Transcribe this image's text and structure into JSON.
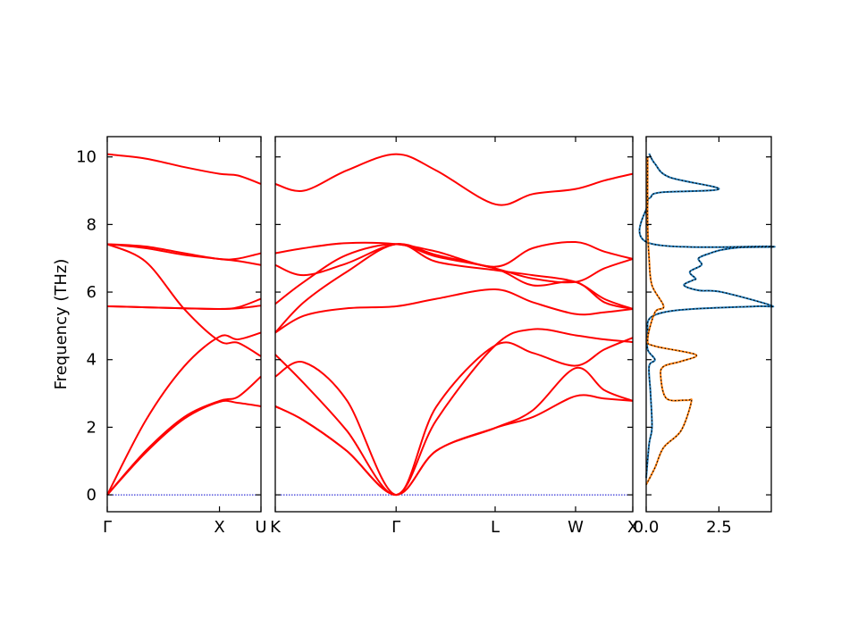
{
  "chart_data": [
    {
      "type": "line",
      "panel": "band-structure-gamma-x-u",
      "ylabel": "Frequency (THz)",
      "ylim": [
        -0.5,
        10.6
      ],
      "yticks": [
        0,
        2,
        4,
        6,
        8,
        10
      ],
      "xlim": [
        0,
        1
      ],
      "xticks": [
        {
          "x": 0,
          "label": "Γ"
        },
        {
          "x": 0.73,
          "label": "X"
        },
        {
          "x": 1,
          "label": "U"
        }
      ],
      "color": "#ff0000",
      "zero_line_color": "#0000cc",
      "series": [
        {
          "x": [
            0,
            0.25,
            0.5,
            0.73,
            0.85,
            1
          ],
          "y": [
            10.08,
            9.95,
            9.7,
            9.5,
            9.45,
            9.2
          ]
        },
        {
          "x": [
            0,
            0.25,
            0.5,
            0.73,
            0.85,
            1
          ],
          "y": [
            7.42,
            7.35,
            7.15,
            6.98,
            6.99,
            7.15
          ]
        },
        {
          "x": [
            0,
            0.25,
            0.5,
            0.73,
            0.85,
            1
          ],
          "y": [
            7.42,
            7.3,
            7.1,
            6.98,
            6.92,
            6.8
          ]
        },
        {
          "x": [
            0,
            0.25,
            0.5,
            0.73,
            0.85,
            1
          ],
          "y": [
            7.42,
            6.9,
            5.5,
            4.55,
            4.5,
            4.1
          ]
        },
        {
          "x": [
            0,
            0.25,
            0.5,
            0.73,
            0.85,
            1
          ],
          "y": [
            5.58,
            5.55,
            5.52,
            5.5,
            5.55,
            5.8
          ]
        },
        {
          "x": [
            0,
            0.25,
            0.5,
            0.73,
            0.85,
            1
          ],
          "y": [
            5.58,
            5.55,
            5.52,
            5.5,
            5.52,
            5.6
          ]
        },
        {
          "x": [
            0,
            0.25,
            0.5,
            0.73,
            0.85,
            1
          ],
          "y": [
            0,
            2.2,
            3.8,
            4.68,
            4.6,
            4.8
          ]
        },
        {
          "x": [
            0,
            0.25,
            0.5,
            0.73,
            0.85,
            1
          ],
          "y": [
            0,
            1.3,
            2.3,
            2.78,
            2.9,
            3.5
          ]
        },
        {
          "x": [
            0,
            0.25,
            0.5,
            0.73,
            0.85,
            1
          ],
          "y": [
            0,
            1.25,
            2.25,
            2.75,
            2.72,
            2.62
          ]
        }
      ]
    },
    {
      "type": "line",
      "panel": "band-structure-k-gamma-l-w-x",
      "ylim": [
        -0.5,
        10.6
      ],
      "xlim": [
        0,
        1
      ],
      "xticks": [
        {
          "x": 0,
          "label": "K"
        },
        {
          "x": 0.338,
          "label": "Γ"
        },
        {
          "x": 0.615,
          "label": "L"
        },
        {
          "x": 0.84,
          "label": "W"
        },
        {
          "x": 1,
          "label": "X"
        }
      ],
      "color": "#ff0000",
      "zero_line_color": "#0000cc",
      "series": [
        {
          "x": [
            0,
            0.08,
            0.2,
            0.338,
            0.45,
            0.615,
            0.72,
            0.84,
            0.92,
            1
          ],
          "y": [
            9.2,
            9.0,
            9.6,
            10.08,
            9.6,
            8.6,
            8.9,
            9.05,
            9.3,
            9.5
          ]
        },
        {
          "x": [
            0,
            0.08,
            0.2,
            0.338,
            0.45,
            0.615,
            0.72,
            0.84,
            0.92,
            1
          ],
          "y": [
            7.15,
            7.3,
            7.45,
            7.42,
            7.2,
            6.75,
            7.3,
            7.48,
            7.2,
            6.98
          ]
        },
        {
          "x": [
            0,
            0.08,
            0.2,
            0.338,
            0.45,
            0.615,
            0.72,
            0.84,
            0.92,
            1
          ],
          "y": [
            6.8,
            6.5,
            6.85,
            7.42,
            7.1,
            6.7,
            6.4,
            6.3,
            6.7,
            6.98
          ]
        },
        {
          "x": [
            0,
            0.08,
            0.2,
            0.338,
            0.45,
            0.615,
            0.72,
            0.84,
            0.92,
            1
          ],
          "y": [
            5.65,
            6.3,
            7.1,
            7.42,
            7.05,
            6.7,
            6.2,
            6.3,
            5.7,
            5.5
          ]
        },
        {
          "x": [
            0,
            0.08,
            0.2,
            0.338,
            0.45,
            0.615,
            0.72,
            0.84,
            0.92,
            1
          ],
          "y": [
            4.8,
            5.7,
            6.6,
            7.42,
            6.9,
            6.65,
            6.5,
            6.3,
            5.8,
            5.5
          ]
        },
        {
          "x": [
            0,
            0.08,
            0.2,
            0.338,
            0.45,
            0.615,
            0.72,
            0.84,
            0.92,
            1
          ],
          "y": [
            4.8,
            5.3,
            5.52,
            5.58,
            5.8,
            6.08,
            5.7,
            5.35,
            5.4,
            5.5
          ]
        },
        {
          "x": [
            0,
            0.08,
            0.2,
            0.338,
            0.45,
            0.615,
            0.72,
            0.84,
            0.92,
            1
          ],
          "y": [
            3.5,
            3.92,
            2.8,
            0,
            2.6,
            4.42,
            4.2,
            3.82,
            4.3,
            4.65
          ]
        },
        {
          "x": [
            0,
            0.08,
            0.2,
            0.338,
            0.45,
            0.615,
            0.72,
            0.84,
            0.92,
            1
          ],
          "y": [
            4.15,
            3.3,
            1.9,
            0,
            2.2,
            4.42,
            4.9,
            4.72,
            4.6,
            4.52
          ]
        },
        {
          "x": [
            0,
            0.08,
            0.2,
            0.338,
            0.45,
            0.615,
            0.72,
            0.84,
            0.92,
            1
          ],
          "y": [
            2.62,
            2.2,
            1.3,
            0,
            1.3,
            1.98,
            2.5,
            3.75,
            3.1,
            2.78
          ]
        },
        {
          "x": [
            0,
            0.08,
            0.2,
            0.338,
            0.45,
            0.615,
            0.72,
            0.84,
            0.92,
            1
          ],
          "y": [
            2.62,
            2.2,
            1.3,
            0,
            1.3,
            1.98,
            2.3,
            2.92,
            2.85,
            2.78
          ]
        }
      ]
    },
    {
      "type": "line",
      "panel": "density-of-states",
      "xlim": [
        0,
        4.3
      ],
      "ylim": [
        -0.5,
        10.6
      ],
      "xticks": [
        {
          "x": 0,
          "label": "0.0"
        },
        {
          "x": 2.5,
          "label": "2.5"
        }
      ],
      "series": [
        {
          "name": "",
          "color": "#1f77b4",
          "x": [
            0,
            0.1,
            0.2,
            0.15,
            0.1,
            0.3,
            0.05,
            0.05,
            0.1,
            0.6,
            1.6,
            3.8,
            4.3,
            2.6,
            1.8,
            1.3,
            1.6,
            1.7,
            1.5,
            1.9,
            1.8,
            2.2,
            2.6,
            3.2,
            4.3,
            0.1,
            0.05,
            0.15,
            0.5,
            2.5,
            0.8,
            0.3,
            0.1
          ],
          "y": [
            0.5,
            1.5,
            2.0,
            3.0,
            3.8,
            4.0,
            4.3,
            4.8,
            5.2,
            5.4,
            5.5,
            5.58,
            5.6,
            6.0,
            6.05,
            6.2,
            6.35,
            6.4,
            6.6,
            6.8,
            7.0,
            7.15,
            7.25,
            7.32,
            7.35,
            7.45,
            8.6,
            8.8,
            8.95,
            9.05,
            9.4,
            9.8,
            10.1
          ]
        },
        {
          "name": "",
          "color": "#ff7f0e",
          "x": [
            0,
            0.3,
            0.6,
            1.2,
            1.55,
            1.4,
            0.7,
            0.5,
            0.6,
            1.2,
            1.7,
            0.3,
            0.05,
            0.3,
            0.6,
            0.2,
            0.1,
            0.05,
            0.05
          ],
          "y": [
            0.3,
            0.8,
            1.4,
            1.9,
            2.75,
            2.8,
            2.85,
            3.5,
            3.8,
            3.95,
            4.15,
            4.4,
            4.6,
            5.4,
            5.58,
            6.2,
            7.0,
            8.0,
            10.0
          ]
        }
      ]
    }
  ]
}
